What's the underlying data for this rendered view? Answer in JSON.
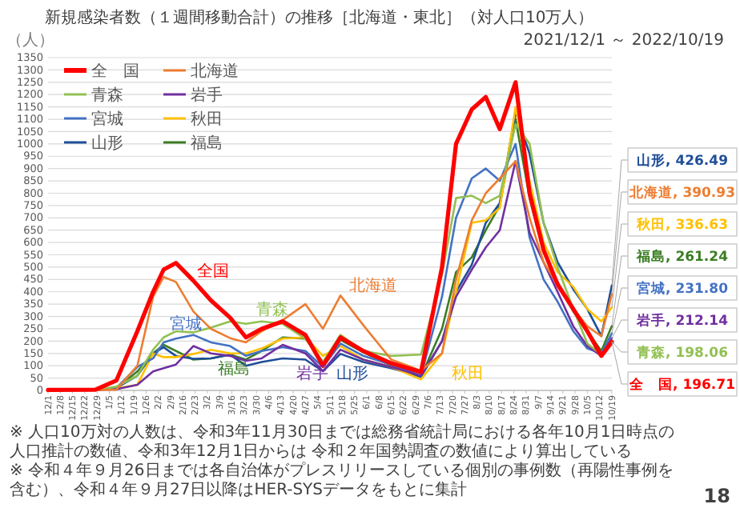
{
  "chart_data": {
    "type": "line",
    "title": "新規感染者数（１週間移動合計）の推移［北海道・東北］（対人口10万人）",
    "subtitle": "2021/12/1 ～ 2022/10/19",
    "ylabel": "（人）",
    "x": [
      "2021-12-01",
      "2021-12-28",
      "2022-01-09",
      "2022-01-21",
      "2022-01-30",
      "2022-02-05",
      "2022-02-12",
      "2022-02-22",
      "2022-03-04",
      "2022-03-15",
      "2022-03-24",
      "2022-04-02",
      "2022-04-14",
      "2022-04-27",
      "2022-05-07",
      "2022-05-17",
      "2022-05-30",
      "2022-06-15",
      "2022-07-02",
      "2022-07-14",
      "2022-07-22",
      "2022-07-31",
      "2022-08-08",
      "2022-08-16",
      "2022-08-25",
      "2022-09-02",
      "2022-09-10",
      "2022-09-18",
      "2022-09-27",
      "2022-10-05",
      "2022-10-13",
      "2022-10-19"
    ],
    "xlim": [
      "2021-12-01",
      "2022-10-19"
    ],
    "ylim": [
      0,
      1350
    ],
    "yticks": [
      0,
      50,
      100,
      150,
      200,
      250,
      300,
      350,
      400,
      450,
      500,
      550,
      600,
      650,
      700,
      750,
      800,
      850,
      900,
      950,
      1000,
      1050,
      1100,
      1150,
      1200,
      1250,
      1300,
      1350
    ],
    "xticks": [
      {
        "value": "2021-12-01",
        "label": "12/1"
      },
      {
        "value": "2021-12-08",
        "label": "12/8"
      },
      {
        "value": "2021-12-15",
        "label": "12/15"
      },
      {
        "value": "2021-12-22",
        "label": "12/22"
      },
      {
        "value": "2021-12-29",
        "label": "12/29"
      },
      {
        "value": "2022-01-05",
        "label": "1/5"
      },
      {
        "value": "2022-01-12",
        "label": "1/12"
      },
      {
        "value": "2022-01-19",
        "label": "1/19"
      },
      {
        "value": "2022-01-26",
        "label": "1/26"
      },
      {
        "value": "2022-02-02",
        "label": "2/2"
      },
      {
        "value": "2022-02-09",
        "label": "2/9"
      },
      {
        "value": "2022-02-16",
        "label": "2/16"
      },
      {
        "value": "2022-02-23",
        "label": "2/23"
      },
      {
        "value": "2022-03-02",
        "label": "3/2"
      },
      {
        "value": "2022-03-09",
        "label": "3/9"
      },
      {
        "value": "2022-03-16",
        "label": "3/16"
      },
      {
        "value": "2022-03-23",
        "label": "3/23"
      },
      {
        "value": "2022-03-30",
        "label": "3/30"
      },
      {
        "value": "2022-04-06",
        "label": "4/6"
      },
      {
        "value": "2022-04-13",
        "label": "4/13"
      },
      {
        "value": "2022-04-20",
        "label": "4/20"
      },
      {
        "value": "2022-04-27",
        "label": "4/27"
      },
      {
        "value": "2022-05-04",
        "label": "5/4"
      },
      {
        "value": "2022-05-11",
        "label": "5/11"
      },
      {
        "value": "2022-05-18",
        "label": "5/18"
      },
      {
        "value": "2022-05-25",
        "label": "5/25"
      },
      {
        "value": "2022-06-01",
        "label": "6/1"
      },
      {
        "value": "2022-06-08",
        "label": "6/8"
      },
      {
        "value": "2022-06-15",
        "label": "6/15"
      },
      {
        "value": "2022-06-22",
        "label": "6/22"
      },
      {
        "value": "2022-06-29",
        "label": "6/29"
      },
      {
        "value": "2022-07-06",
        "label": "7/6"
      },
      {
        "value": "2022-07-13",
        "label": "7/13"
      },
      {
        "value": "2022-07-20",
        "label": "7/20"
      },
      {
        "value": "2022-07-27",
        "label": "7/27"
      },
      {
        "value": "2022-08-03",
        "label": "8/3"
      },
      {
        "value": "2022-08-10",
        "label": "8/10"
      },
      {
        "value": "2022-08-17",
        "label": "8/17"
      },
      {
        "value": "2022-08-24",
        "label": "8/24"
      },
      {
        "value": "2022-08-31",
        "label": "8/31"
      },
      {
        "value": "2022-09-07",
        "label": "9/7"
      },
      {
        "value": "2022-09-14",
        "label": "9/14"
      },
      {
        "value": "2022-09-21",
        "label": "9/21"
      },
      {
        "value": "2022-09-28",
        "label": "9/28"
      },
      {
        "value": "2022-10-05",
        "label": "10/5"
      },
      {
        "value": "2022-10-12",
        "label": "10/12"
      },
      {
        "value": "2022-10-19",
        "label": "10/19"
      }
    ],
    "grid": "y",
    "legend": "top left",
    "series": [
      {
        "name": "全　国",
        "color": "#ff0000",
        "values": [
          2,
          3,
          40,
          240,
          400,
          490,
          517,
          445,
          365,
          295,
          215,
          250,
          280,
          225,
          100,
          215,
          160,
          110,
          75,
          500,
          1000,
          1140,
          1190,
          1060,
          1250,
          800,
          570,
          430,
          330,
          240,
          140,
          196.71
        ],
        "value_labels": [
          null,
          null,
          null,
          null,
          null,
          null,
          null,
          null,
          null,
          null,
          null,
          null,
          null,
          null,
          null,
          null,
          null,
          null,
          null,
          null,
          null,
          null,
          null,
          null,
          null,
          null,
          null,
          null,
          null,
          null,
          null,
          "全　国, 196.71"
        ]
      },
      {
        "name": "北海道",
        "color": "#ed7d31",
        "values": [
          2,
          2,
          3,
          100,
          380,
          460,
          440,
          320,
          250,
          212,
          195,
          240,
          285,
          350,
          250,
          385,
          265,
          125,
          80,
          150,
          450,
          690,
          800,
          860,
          930,
          700,
          520,
          430,
          330,
          260,
          220,
          390.93
        ],
        "value_labels": [
          null,
          null,
          null,
          null,
          null,
          null,
          null,
          null,
          null,
          null,
          null,
          null,
          null,
          null,
          null,
          null,
          null,
          null,
          null,
          null,
          null,
          null,
          null,
          null,
          null,
          null,
          null,
          null,
          null,
          null,
          null,
          "北海道, 390.93"
        ]
      },
      {
        "name": "青森",
        "color": "#92c052",
        "values": [
          3,
          2,
          15,
          60,
          165,
          215,
          240,
          235,
          255,
          280,
          270,
          280,
          270,
          210,
          115,
          225,
          160,
          140,
          145,
          470,
          780,
          790,
          760,
          790,
          1080,
          1000,
          680,
          500,
          330,
          190,
          145,
          198.06
        ],
        "value_labels": [
          null,
          null,
          null,
          null,
          null,
          null,
          null,
          null,
          null,
          null,
          null,
          null,
          null,
          null,
          null,
          null,
          null,
          null,
          null,
          null,
          null,
          null,
          null,
          null,
          null,
          null,
          null,
          null,
          null,
          null,
          null,
          "青森, 198.06"
        ]
      },
      {
        "name": "岩手",
        "color": "#7030a0",
        "values": [
          2,
          2,
          5,
          23,
          77,
          90,
          105,
          180,
          150,
          140,
          120,
          130,
          185,
          150,
          78,
          165,
          125,
          95,
          60,
          200,
          380,
          490,
          580,
          650,
          930,
          640,
          520,
          400,
          260,
          180,
          140,
          212.14
        ],
        "value_labels": [
          null,
          null,
          null,
          null,
          null,
          null,
          null,
          null,
          null,
          null,
          null,
          null,
          null,
          null,
          null,
          null,
          null,
          null,
          null,
          null,
          null,
          null,
          null,
          null,
          null,
          null,
          null,
          null,
          null,
          null,
          null,
          "岩手, 212.14"
        ]
      },
      {
        "name": "宮城",
        "color": "#4472c4",
        "values": [
          3,
          2,
          10,
          95,
          130,
          195,
          210,
          225,
          195,
          180,
          140,
          160,
          175,
          160,
          95,
          190,
          140,
          105,
          60,
          380,
          700,
          860,
          900,
          850,
          1000,
          620,
          450,
          360,
          240,
          170,
          150,
          231.8
        ],
        "value_labels": [
          null,
          null,
          null,
          null,
          null,
          null,
          null,
          null,
          null,
          null,
          null,
          null,
          null,
          null,
          null,
          null,
          null,
          null,
          null,
          null,
          null,
          null,
          null,
          null,
          null,
          null,
          null,
          null,
          null,
          null,
          null,
          "宮城, 231.80"
        ]
      },
      {
        "name": "秋田",
        "color": "#ffc000",
        "values": [
          2,
          2,
          8,
          23,
          150,
          135,
          135,
          148,
          165,
          150,
          150,
          170,
          210,
          215,
          140,
          180,
          125,
          95,
          45,
          150,
          400,
          680,
          690,
          740,
          1150,
          850,
          600,
          480,
          420,
          330,
          280,
          336.63
        ],
        "value_labels": [
          null,
          null,
          null,
          null,
          null,
          null,
          null,
          null,
          null,
          null,
          null,
          null,
          null,
          null,
          null,
          null,
          null,
          null,
          null,
          null,
          null,
          null,
          null,
          null,
          null,
          null,
          null,
          null,
          null,
          null,
          null,
          "秋田, 336.63"
        ]
      },
      {
        "name": "山形",
        "color": "#1f4e99",
        "values": [
          2,
          2,
          10,
          60,
          150,
          175,
          140,
          128,
          130,
          145,
          100,
          115,
          130,
          125,
          78,
          148,
          115,
          90,
          55,
          200,
          400,
          510,
          680,
          760,
          1130,
          960,
          680,
          520,
          410,
          330,
          220,
          426.49
        ],
        "value_labels": [
          null,
          null,
          null,
          null,
          null,
          null,
          null,
          null,
          null,
          null,
          null,
          null,
          null,
          null,
          null,
          null,
          null,
          null,
          null,
          null,
          null,
          null,
          null,
          null,
          null,
          null,
          null,
          null,
          null,
          null,
          null,
          "山形, 426.49"
        ]
      },
      {
        "name": "福島",
        "color": "#3a7d22",
        "values": [
          3,
          2,
          8,
          77,
          150,
          185,
          160,
          125,
          130,
          145,
          125,
          160,
          215,
          210,
          115,
          205,
          155,
          100,
          55,
          250,
          480,
          540,
          650,
          750,
          1100,
          780,
          560,
          440,
          320,
          240,
          160,
          261.24
        ],
        "value_labels": [
          null,
          null,
          null,
          null,
          null,
          null,
          null,
          null,
          null,
          null,
          null,
          null,
          null,
          null,
          null,
          null,
          null,
          null,
          null,
          null,
          null,
          null,
          null,
          null,
          null,
          null,
          null,
          null,
          null,
          null,
          null,
          "福島, 261.24"
        ]
      }
    ],
    "annotations": [
      "全国",
      "北海道",
      "青森",
      "岩手",
      "宮城",
      "秋田",
      "山形",
      "福島",
      "※ 人口10万対の人数は、令和3年11月30日までは総務省統計局における各年10月1日時点の人口推計の数値、令和3年12月1日からは 令和２年国勢調査の数値により算出している",
      "※ 令和４年９月26日までは各自治体がプレスリリースしている個別の事例数（再陽性事例を含む）、令和４年９月27日以降はHER-SYSデータをもとに集計",
      "18"
    ]
  }
}
